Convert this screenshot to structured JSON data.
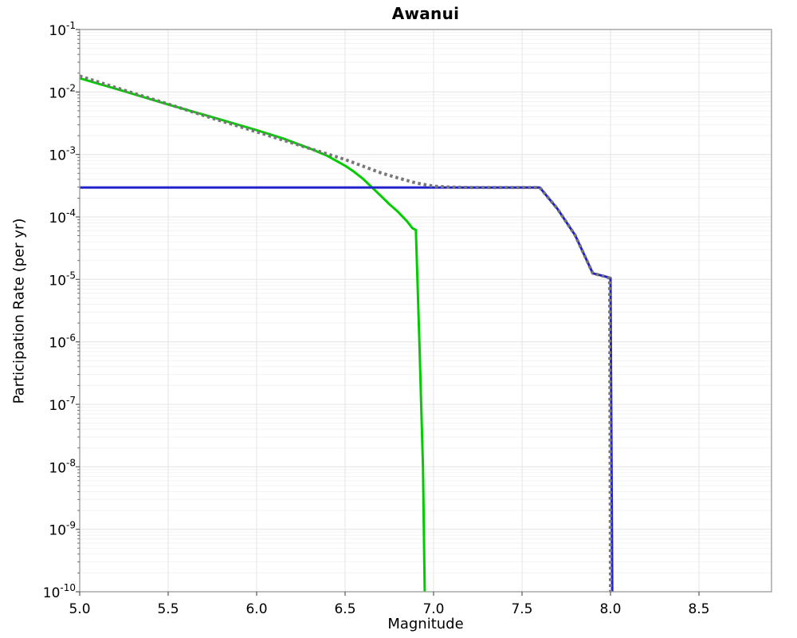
{
  "chart_data": {
    "type": "line",
    "title": "Awanui",
    "xlabel": "Magnitude",
    "ylabel": "Participation Rate (per yr)",
    "xlim": [
      5.0,
      8.91
    ],
    "ylim": [
      1e-10,
      0.1
    ],
    "y_scale": "log",
    "grid": true,
    "legend": "none",
    "colors": {
      "grid_major": "#e4e4e4",
      "grid_minor": "#f3f3f3",
      "frame": "#9a9a9a",
      "tick": "#555555",
      "text": "#000000"
    },
    "x_ticks": [
      {
        "value": 5.0,
        "label": "5.0"
      },
      {
        "value": 5.5,
        "label": "5.5"
      },
      {
        "value": 6.0,
        "label": "6.0"
      },
      {
        "value": 6.5,
        "label": "6.5"
      },
      {
        "value": 7.0,
        "label": "7.0"
      },
      {
        "value": 7.5,
        "label": "7.5"
      },
      {
        "value": 8.0,
        "label": "8.0"
      },
      {
        "value": 8.5,
        "label": "8.5"
      }
    ],
    "y_ticks": [
      {
        "value": 0.1,
        "base": "10",
        "exponent": "-1"
      },
      {
        "value": 0.01,
        "base": "10",
        "exponent": "-2"
      },
      {
        "value": 0.001,
        "base": "10",
        "exponent": "-3"
      },
      {
        "value": 0.0001,
        "base": "10",
        "exponent": "-4"
      },
      {
        "value": 1e-05,
        "base": "10",
        "exponent": "-5"
      },
      {
        "value": 1e-06,
        "base": "10",
        "exponent": "-6"
      },
      {
        "value": 1e-07,
        "base": "10",
        "exponent": "-7"
      },
      {
        "value": 1e-08,
        "base": "10",
        "exponent": "-8"
      },
      {
        "value": 1e-09,
        "base": "10",
        "exponent": "-9"
      },
      {
        "value": 1e-10,
        "base": "10",
        "exponent": "-10"
      }
    ],
    "series": [
      {
        "name": "green-solid-curve",
        "color": "#00cc00",
        "style": "solid",
        "width": 3,
        "points": [
          [
            5.0,
            0.0166
          ],
          [
            5.25,
            0.0103
          ],
          [
            5.5,
            0.0063
          ],
          [
            5.75,
            0.00395
          ],
          [
            6.0,
            0.00245
          ],
          [
            6.15,
            0.0018
          ],
          [
            6.3,
            0.00125
          ],
          [
            6.4,
            0.00095
          ],
          [
            6.5,
            0.00066
          ],
          [
            6.55,
            0.00053
          ],
          [
            6.6,
            0.00041
          ],
          [
            6.65,
            0.0003
          ],
          [
            6.7,
            0.00022
          ],
          [
            6.75,
            0.00016
          ],
          [
            6.8,
            0.00012
          ],
          [
            6.85,
            8.5e-05
          ],
          [
            6.88,
            6.6e-05
          ],
          [
            6.9,
            6.2e-05
          ],
          [
            6.92,
            1e-06
          ],
          [
            6.94,
            1e-08
          ],
          [
            6.95,
            1e-10
          ]
        ]
      },
      {
        "name": "blue-solid-curve",
        "color": "#2222cc",
        "style": "solid",
        "width": 3,
        "points": [
          [
            5.0,
            0.000296
          ],
          [
            7.6,
            0.000296
          ],
          [
            7.7,
            0.000135
          ],
          [
            7.8,
            5.1e-05
          ],
          [
            7.9,
            1.25e-05
          ],
          [
            7.95,
            1.15e-05
          ],
          [
            8.0,
            1.06e-05
          ],
          [
            8.01,
            1e-10
          ]
        ]
      },
      {
        "name": "gray-dotted-curve",
        "color": "#777777",
        "style": "dotted",
        "width": 4,
        "points": [
          [
            5.0,
            0.018
          ],
          [
            5.25,
            0.0107
          ],
          [
            5.5,
            0.0064
          ],
          [
            5.75,
            0.0038
          ],
          [
            6.0,
            0.0023
          ],
          [
            6.25,
            0.00138
          ],
          [
            6.5,
            0.00083
          ],
          [
            6.6,
            0.00065
          ],
          [
            6.7,
            0.00051
          ],
          [
            6.8,
            0.00042
          ],
          [
            6.9,
            0.00035
          ],
          [
            7.0,
            0.00031
          ],
          [
            7.1,
            0.000299
          ],
          [
            7.2,
            0.000296
          ],
          [
            7.6,
            0.000296
          ],
          [
            7.7,
            0.000135
          ],
          [
            7.8,
            5.1e-05
          ],
          [
            7.9,
            1.25e-05
          ],
          [
            7.95,
            1.15e-05
          ],
          [
            7.995,
            1.05e-05
          ],
          [
            8.0,
            1e-10
          ]
        ]
      }
    ]
  }
}
